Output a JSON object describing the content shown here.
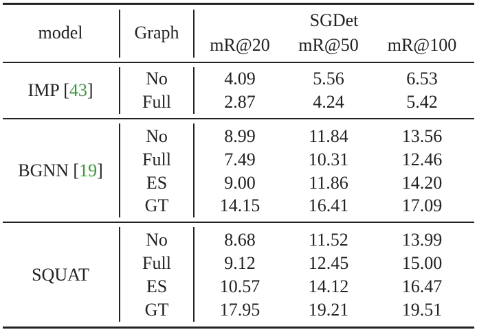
{
  "table": {
    "headers": {
      "model": "model",
      "graph": "Graph",
      "group": "SGDet",
      "metrics": [
        "mR@20",
        "mR@50",
        "mR@100"
      ]
    },
    "groups": [
      {
        "model": "IMP",
        "cite": "43",
        "rows": [
          {
            "graph": "No",
            "values": [
              "4.09",
              "5.56",
              "6.53"
            ]
          },
          {
            "graph": "Full",
            "values": [
              "2.87",
              "4.24",
              "5.42"
            ]
          }
        ]
      },
      {
        "model": "BGNN",
        "cite": "19",
        "rows": [
          {
            "graph": "No",
            "values": [
              "8.99",
              "11.84",
              "13.56"
            ]
          },
          {
            "graph": "Full",
            "values": [
              "7.49",
              "10.31",
              "12.46"
            ]
          },
          {
            "graph": "ES",
            "values": [
              "9.00",
              "11.86",
              "14.20"
            ]
          },
          {
            "graph": "GT",
            "values": [
              "14.15",
              "16.41",
              "17.09"
            ]
          }
        ]
      },
      {
        "model": "SQUAT",
        "cite": "",
        "rows": [
          {
            "graph": "No",
            "values": [
              "8.68",
              "11.52",
              "13.99"
            ]
          },
          {
            "graph": "Full",
            "values": [
              "9.12",
              "12.45",
              "15.00"
            ]
          },
          {
            "graph": "ES",
            "values": [
              "10.57",
              "14.12",
              "16.47"
            ]
          },
          {
            "graph": "GT",
            "values": [
              "17.95",
              "19.21",
              "19.51"
            ]
          }
        ]
      }
    ]
  }
}
